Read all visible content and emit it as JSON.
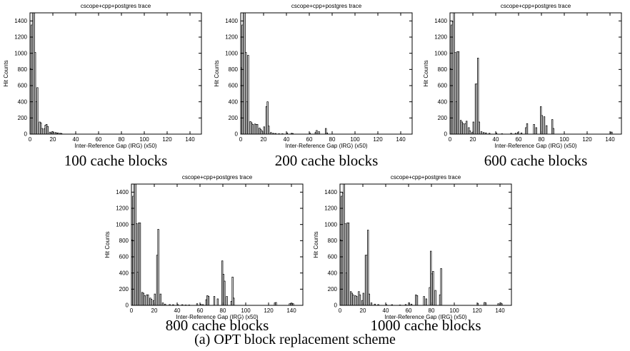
{
  "figure": {
    "caption": "(a) OPT block replacement scheme"
  },
  "axes": {
    "title": "cscope+cpp+postgres trace",
    "xlabel": "Inter-Reference Gap (IRG) (x50)",
    "ylabel": "Hit Counts",
    "xlim": [
      0,
      150
    ],
    "ylim": [
      0,
      1500
    ],
    "xticks": [
      0,
      20,
      40,
      60,
      80,
      100,
      120,
      140
    ],
    "yticks": [
      0,
      200,
      400,
      600,
      800,
      1000,
      1200,
      1400
    ],
    "grid": false,
    "colors": {
      "axis": "#000000",
      "bar_stroke": "#000000",
      "bar_fill": "#ffffff",
      "text": "#000000",
      "background": "#ffffff"
    }
  },
  "chart_data": [
    {
      "type": "bar",
      "caption": "100 cache blocks",
      "title": "cscope+cpp+postgres trace",
      "xlabel": "Inter-Reference Gap (IRG) (x50)",
      "ylabel": "Hit Counts",
      "bars": [
        [
          0,
          810
        ],
        [
          1,
          1350
        ],
        [
          2,
          1500
        ],
        [
          3,
          1500
        ],
        [
          4,
          1010
        ],
        [
          5,
          400
        ],
        [
          6,
          575
        ],
        [
          8,
          150
        ],
        [
          9,
          140
        ],
        [
          10,
          70
        ],
        [
          12,
          65
        ],
        [
          13,
          110
        ],
        [
          14,
          120
        ],
        [
          15,
          95
        ],
        [
          17,
          25
        ],
        [
          18,
          15
        ],
        [
          19,
          30
        ],
        [
          20,
          25
        ],
        [
          22,
          20
        ],
        [
          23,
          10
        ],
        [
          24,
          15
        ],
        [
          26,
          10
        ],
        [
          27,
          8
        ]
      ]
    },
    {
      "type": "bar",
      "caption": "200 cache blocks",
      "title": "cscope+cpp+postgres trace",
      "xlabel": "Inter-Reference Gap (IRG) (x50)",
      "ylabel": "Hit Counts",
      "bars": [
        [
          0,
          820
        ],
        [
          1,
          1350
        ],
        [
          2,
          1500
        ],
        [
          3,
          1500
        ],
        [
          4,
          1010
        ],
        [
          5,
          400
        ],
        [
          6,
          975
        ],
        [
          8,
          155
        ],
        [
          9,
          140
        ],
        [
          10,
          120
        ],
        [
          12,
          125
        ],
        [
          13,
          120
        ],
        [
          14,
          120
        ],
        [
          16,
          75
        ],
        [
          17,
          60
        ],
        [
          18,
          40
        ],
        [
          20,
          90
        ],
        [
          22,
          340
        ],
        [
          23,
          400
        ],
        [
          24,
          100
        ],
        [
          26,
          20
        ],
        [
          28,
          10
        ],
        [
          30,
          8
        ],
        [
          33,
          5
        ],
        [
          36,
          5
        ],
        [
          40,
          15
        ],
        [
          44,
          10
        ],
        [
          45,
          8
        ],
        [
          60,
          12
        ],
        [
          65,
          20
        ],
        [
          66,
          45
        ],
        [
          68,
          30
        ],
        [
          74,
          70
        ],
        [
          75,
          15
        ]
      ]
    },
    {
      "type": "bar",
      "caption": "600 cache blocks",
      "title": "cscope+cpp+postgres trace",
      "xlabel": "Inter-Reference Gap (IRG) (x50)",
      "ylabel": "Hit Counts",
      "bars": [
        [
          0,
          810
        ],
        [
          1,
          1350
        ],
        [
          2,
          1390
        ],
        [
          3,
          1500
        ],
        [
          4,
          1010
        ],
        [
          5,
          400
        ],
        [
          6,
          1020
        ],
        [
          7,
          1020
        ],
        [
          9,
          170
        ],
        [
          10,
          150
        ],
        [
          11,
          130
        ],
        [
          13,
          130
        ],
        [
          14,
          160
        ],
        [
          16,
          80
        ],
        [
          17,
          40
        ],
        [
          19,
          20
        ],
        [
          20,
          150
        ],
        [
          22,
          620
        ],
        [
          23,
          620
        ],
        [
          24,
          940
        ],
        [
          25,
          150
        ],
        [
          27,
          30
        ],
        [
          29,
          20
        ],
        [
          31,
          15
        ],
        [
          34,
          10
        ],
        [
          40,
          15
        ],
        [
          45,
          5
        ],
        [
          53,
          10
        ],
        [
          57,
          10
        ],
        [
          59,
          20
        ],
        [
          62,
          15
        ],
        [
          66,
          80
        ],
        [
          67,
          130
        ],
        [
          73,
          120
        ],
        [
          75,
          80
        ],
        [
          79,
          340
        ],
        [
          80,
          230
        ],
        [
          82,
          215
        ],
        [
          84,
          105
        ],
        [
          89,
          180
        ],
        [
          90,
          70
        ],
        [
          140,
          25
        ],
        [
          141,
          25
        ]
      ]
    },
    {
      "type": "bar",
      "caption": "800 cache blocks",
      "title": "cscope+cpp+postgres trace",
      "xlabel": "Inter-Reference Gap (IRG) (x50)",
      "ylabel": "Hit Counts",
      "bars": [
        [
          0,
          810
        ],
        [
          1,
          1350
        ],
        [
          2,
          1500
        ],
        [
          3,
          1500
        ],
        [
          4,
          1010
        ],
        [
          5,
          410
        ],
        [
          6,
          1020
        ],
        [
          7,
          1020
        ],
        [
          9,
          160
        ],
        [
          10,
          150
        ],
        [
          11,
          120
        ],
        [
          13,
          130
        ],
        [
          14,
          130
        ],
        [
          16,
          90
        ],
        [
          17,
          75
        ],
        [
          19,
          60
        ],
        [
          20,
          140
        ],
        [
          22,
          620
        ],
        [
          23,
          940
        ],
        [
          25,
          140
        ],
        [
          27,
          30
        ],
        [
          29,
          15
        ],
        [
          33,
          10
        ],
        [
          36,
          8
        ],
        [
          40,
          10
        ],
        [
          44,
          8
        ],
        [
          47,
          5
        ],
        [
          50,
          5
        ],
        [
          57,
          20
        ],
        [
          60,
          15
        ],
        [
          62,
          10
        ],
        [
          65,
          70
        ],
        [
          66,
          120
        ],
        [
          67,
          110
        ],
        [
          72,
          110
        ],
        [
          75,
          80
        ],
        [
          79,
          550
        ],
        [
          80,
          385
        ],
        [
          81,
          300
        ],
        [
          83,
          110
        ],
        [
          87,
          50
        ],
        [
          88,
          350
        ],
        [
          89,
          90
        ],
        [
          125,
          30
        ],
        [
          126,
          35
        ],
        [
          138,
          20
        ],
        [
          139,
          25
        ],
        [
          140,
          25
        ],
        [
          141,
          20
        ]
      ]
    },
    {
      "type": "bar",
      "caption": "1000 cache blocks",
      "title": "cscope+cpp+postgres trace",
      "xlabel": "Inter-Reference Gap (IRG) (x50)",
      "ylabel": "Hit Counts",
      "bars": [
        [
          0,
          810
        ],
        [
          1,
          1350
        ],
        [
          2,
          1390
        ],
        [
          3,
          1500
        ],
        [
          4,
          1010
        ],
        [
          5,
          400
        ],
        [
          6,
          1020
        ],
        [
          7,
          1020
        ],
        [
          9,
          170
        ],
        [
          10,
          150
        ],
        [
          11,
          130
        ],
        [
          13,
          120
        ],
        [
          14,
          110
        ],
        [
          16,
          170
        ],
        [
          17,
          130
        ],
        [
          19,
          60
        ],
        [
          20,
          150
        ],
        [
          22,
          620
        ],
        [
          23,
          620
        ],
        [
          24,
          930
        ],
        [
          25,
          140
        ],
        [
          27,
          30
        ],
        [
          30,
          15
        ],
        [
          33,
          10
        ],
        [
          40,
          10
        ],
        [
          45,
          8
        ],
        [
          52,
          5
        ],
        [
          57,
          10
        ],
        [
          60,
          30
        ],
        [
          62,
          15
        ],
        [
          66,
          130
        ],
        [
          67,
          120
        ],
        [
          73,
          110
        ],
        [
          75,
          80
        ],
        [
          78,
          220
        ],
        [
          79,
          670
        ],
        [
          80,
          390
        ],
        [
          81,
          420
        ],
        [
          83,
          185
        ],
        [
          87,
          130
        ],
        [
          88,
          455
        ],
        [
          120,
          25
        ],
        [
          126,
          35
        ],
        [
          127,
          30
        ],
        [
          138,
          20
        ],
        [
          140,
          30
        ],
        [
          141,
          20
        ]
      ]
    }
  ]
}
